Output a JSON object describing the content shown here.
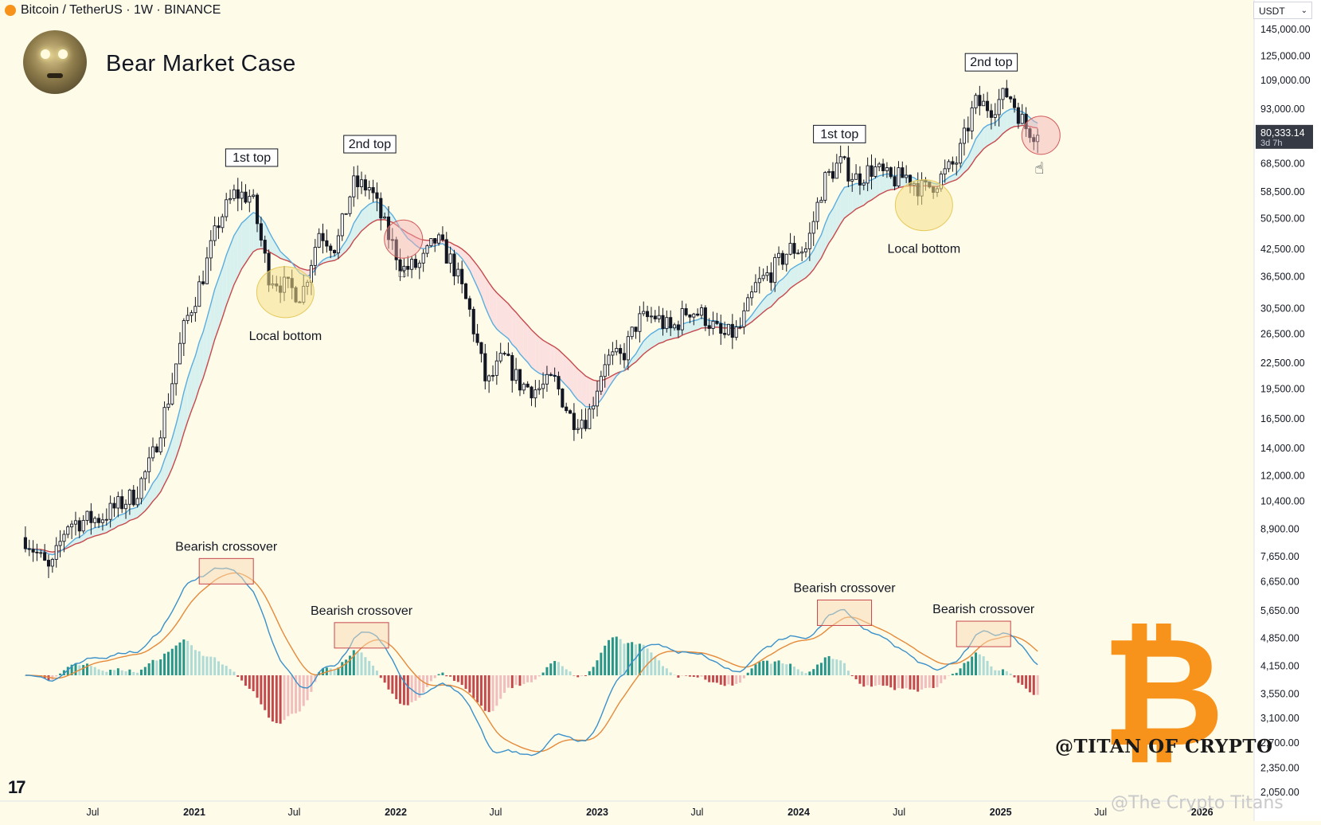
{
  "header": {
    "symbol": "Bitcoin / TetherUS · 1W · BINANCE",
    "title": "Bear Market Case",
    "currency_selector": "USDT"
  },
  "watermarks": {
    "brand": "@TITAN OF CRYPTO",
    "tradingview": "@The Crypto Titans"
  },
  "colors": {
    "background": "#fefbe9",
    "fast_ema": "#5aaedf",
    "slow_ema": "#c7484c",
    "ribbon_bull": "#d9f1ee",
    "ribbon_bear": "#fbe1df",
    "candle": "#131722",
    "macd_line": "#3a91c9",
    "signal_line": "#e58a3a",
    "hist_pos_strong": "#26968a",
    "hist_pos_weak": "#aedbd5",
    "hist_neg_strong": "#c4494c",
    "hist_neg_weak": "#f1bdbd",
    "bitcoin_orange": "#f7931a"
  },
  "chart_data": [
    {
      "type": "candlestick",
      "title": "Bear Market Case",
      "scale": "log",
      "ylim": [
        2050,
        145000
      ],
      "y_ticks": [
        "145,000.00",
        "125,000.00",
        "109,000.00",
        "93,000.00",
        "68,500.00",
        "58,500.00",
        "50,500.00",
        "42,500.00",
        "36,500.00",
        "30,500.00",
        "26,500.00",
        "22,500.00",
        "19,500.00",
        "16,500.00",
        "14,000.00",
        "12,000.00",
        "10,400.00",
        "8,900.00",
        "7,650.00",
        "6,650.00",
        "5,650.00",
        "4,850.00",
        "4,150.00",
        "3,550.00",
        "3,100.00",
        "2,700.00",
        "2,350.00",
        "2,050.00"
      ],
      "x_ticks": [
        "Jul",
        "2021",
        "Jul",
        "2022",
        "Jul",
        "2023",
        "Jul",
        "2024",
        "Jul",
        "2025",
        "Jul",
        "2026"
      ],
      "last_price": "80,333.14",
      "countdown": "3d 7h",
      "close_series": {
        "start": "2020-03",
        "step": "1W",
        "anchors": [
          [
            "2020-03",
            8500
          ],
          [
            "2020-04",
            7000
          ],
          [
            "2020-05",
            9200
          ],
          [
            "2020-07",
            9500
          ],
          [
            "2020-09",
            10800
          ],
          [
            "2020-10",
            13000
          ],
          [
            "2020-11",
            18500
          ],
          [
            "2020-12",
            28000
          ],
          [
            "2021-01",
            36000
          ],
          [
            "2021-02",
            50000
          ],
          [
            "2021-03",
            58000
          ],
          [
            "2021-04",
            57000
          ],
          [
            "2021-05",
            37000
          ],
          [
            "2021-06",
            34500
          ],
          [
            "2021-07",
            33000
          ],
          [
            "2021-08",
            47000
          ],
          [
            "2021-09",
            43000
          ],
          [
            "2021-10",
            61000
          ],
          [
            "2021-11",
            60000
          ],
          [
            "2021-12",
            47000
          ],
          [
            "2022-01",
            38000
          ],
          [
            "2022-02",
            39000
          ],
          [
            "2022-03",
            45000
          ],
          [
            "2022-04",
            39000
          ],
          [
            "2022-05",
            30000
          ],
          [
            "2022-06",
            19800
          ],
          [
            "2022-07",
            23300
          ],
          [
            "2022-08",
            20000
          ],
          [
            "2022-09",
            19400
          ],
          [
            "2022-10",
            20500
          ],
          [
            "2022-11",
            16500
          ],
          [
            "2022-12",
            16600
          ],
          [
            "2023-01",
            23000
          ],
          [
            "2023-02",
            23200
          ],
          [
            "2023-03",
            28500
          ],
          [
            "2023-04",
            29300
          ],
          [
            "2023-05",
            27000
          ],
          [
            "2023-06",
            30500
          ],
          [
            "2023-07",
            29200
          ],
          [
            "2023-08",
            26000
          ],
          [
            "2023-09",
            27000
          ],
          [
            "2023-10",
            34500
          ],
          [
            "2023-11",
            37800
          ],
          [
            "2023-12",
            42500
          ],
          [
            "2024-01",
            42600
          ],
          [
            "2024-02",
            62000
          ],
          [
            "2024-03",
            69000
          ],
          [
            "2024-04",
            63000
          ],
          [
            "2024-05",
            67000
          ],
          [
            "2024-06",
            62500
          ],
          [
            "2024-07",
            64000
          ],
          [
            "2024-08",
            59000
          ],
          [
            "2024-09",
            63500
          ],
          [
            "2024-10",
            70000
          ],
          [
            "2024-11",
            96000
          ],
          [
            "2024-12",
            94000
          ],
          [
            "2025-01",
            102000
          ],
          [
            "2025-02",
            84000
          ],
          [
            "2025-03",
            80333
          ]
        ]
      },
      "annotations": [
        {
          "text": "1st top",
          "style": "box",
          "date": "2021-04",
          "price": 64000
        },
        {
          "text": "2nd top",
          "style": "box",
          "date": "2021-11",
          "price": 69000
        },
        {
          "text": "Local bottom",
          "style": "label",
          "date": "2021-06",
          "price": 32000
        },
        {
          "text": "1st top",
          "style": "box",
          "date": "2024-03",
          "price": 73000
        },
        {
          "text": "2nd top",
          "style": "box",
          "date": "2024-12",
          "price": 109000
        },
        {
          "text": "Local bottom",
          "style": "label",
          "date": "2024-08",
          "price": 52000
        }
      ]
    },
    {
      "type": "macd",
      "annotations": [
        {
          "text": "Bearish crossover",
          "date": "2021-04"
        },
        {
          "text": "Bearish crossover",
          "date": "2021-11"
        },
        {
          "text": "Bearish crossover",
          "date": "2024-04"
        },
        {
          "text": "Bearish crossover",
          "date": "2025-01"
        }
      ]
    }
  ]
}
